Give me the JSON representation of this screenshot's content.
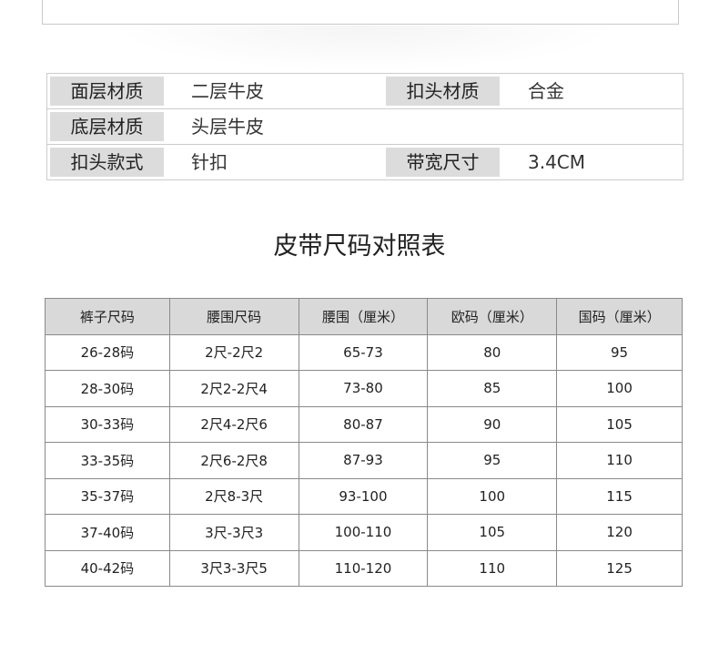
{
  "specs": [
    {
      "label1": "面层材质",
      "value1": "二层牛皮",
      "label2": "扣头材质",
      "value2": "合金"
    },
    {
      "label1": "底层材质",
      "value1": "头层牛皮",
      "label2": "",
      "value2": ""
    },
    {
      "label1": "扣头款式",
      "value1": "针扣",
      "label2": "带宽尺寸",
      "value2": "3.4CM"
    }
  ],
  "size_title": "皮带尺码对照表",
  "size_table": {
    "headers": [
      "裤子尺码",
      "腰围尺码",
      "腰围（厘米）",
      "欧码（厘米）",
      "国码（厘米）"
    ],
    "rows": [
      [
        "26-28码",
        "2尺-2尺2",
        "65-73",
        "80",
        "95"
      ],
      [
        "28-30码",
        "2尺2-2尺4",
        "73-80",
        "85",
        "100"
      ],
      [
        "30-33码",
        "2尺4-2尺6",
        "80-87",
        "90",
        "105"
      ],
      [
        "33-35码",
        "2尺6-2尺8",
        "87-93",
        "95",
        "110"
      ],
      [
        "35-37码",
        "2尺8-3尺",
        "93-100",
        "100",
        "115"
      ],
      [
        "37-40码",
        "3尺-3尺3",
        "100-110",
        "105",
        "120"
      ],
      [
        "40-42码",
        "3尺3-3尺5",
        "110-120",
        "110",
        "125"
      ]
    ]
  }
}
